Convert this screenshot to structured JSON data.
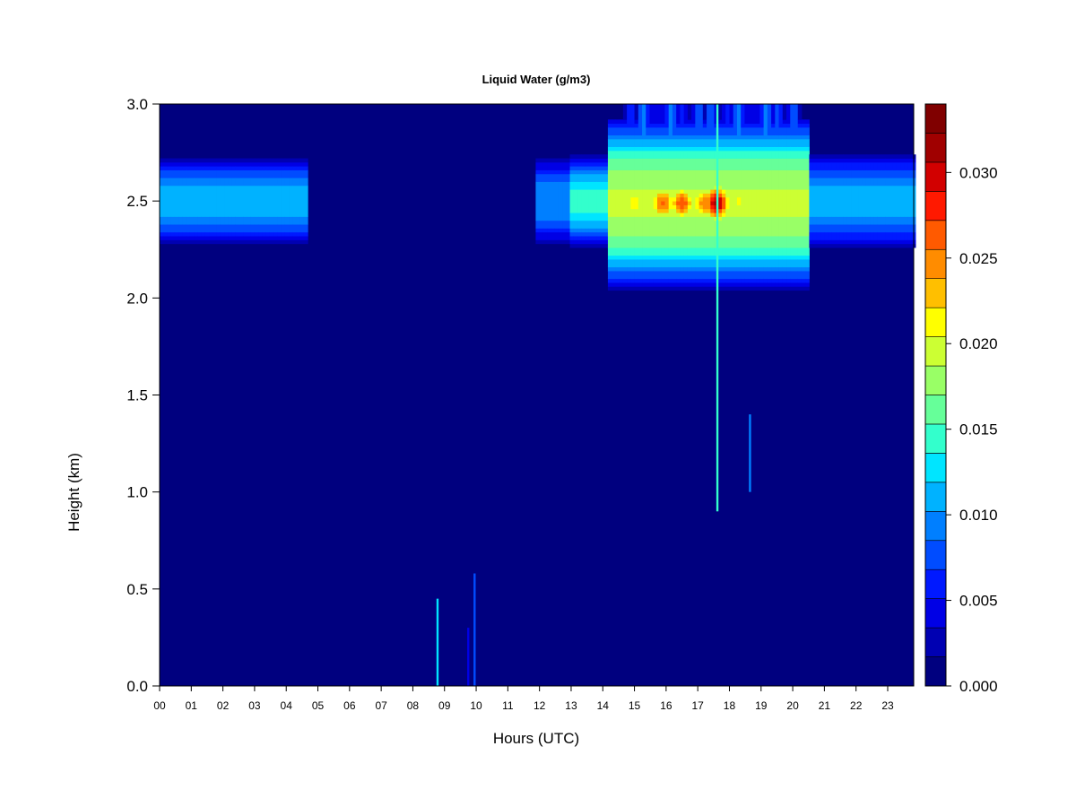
{
  "chart_data": {
    "type": "heatmap",
    "title": "Liquid Water (g/m3)",
    "xlabel": "Hours (UTC)",
    "ylabel": "Height (km)",
    "xlim": [
      0,
      23.9
    ],
    "ylim": [
      0,
      3.0
    ],
    "x_ticks": [
      "00",
      "01",
      "02",
      "03",
      "04",
      "05",
      "06",
      "07",
      "08",
      "09",
      "10",
      "11",
      "12",
      "13",
      "14",
      "15",
      "16",
      "17",
      "18",
      "19",
      "20",
      "21",
      "22",
      "23"
    ],
    "y_ticks": [
      "0.0",
      "0.5",
      "1.0",
      "1.5",
      "2.0",
      "2.5",
      "3.0"
    ],
    "colorbar": {
      "min": 0.0,
      "max": 0.034,
      "tick_values": [
        0.0,
        0.005,
        0.01,
        0.015,
        0.02,
        0.025,
        0.03
      ],
      "tick_labels": [
        "0.000",
        "0.005",
        "0.010",
        "0.015",
        "0.020",
        "0.025",
        "0.030"
      ],
      "colors": [
        "#00007f",
        "#0000b2",
        "#0000e5",
        "#0019ff",
        "#004cff",
        "#007fff",
        "#00b2ff",
        "#00e5ff",
        "#33ffcc",
        "#66ff99",
        "#99ff66",
        "#ccff33",
        "#ffff00",
        "#ffbf00",
        "#ff8c00",
        "#ff5a00",
        "#ff1900",
        "#d20000",
        "#a00000",
        "#800000"
      ]
    },
    "background_value": 0.0,
    "cloud_layers": [
      {
        "x_start": 0.0,
        "x_end": 4.7,
        "center_km": 2.5,
        "half_thickness_km": 0.23,
        "peak": 0.011
      },
      {
        "x_start": 11.9,
        "x_end": 13.0,
        "center_km": 2.5,
        "half_thickness_km": 0.22,
        "peak": 0.01
      },
      {
        "x_start": 13.0,
        "x_end": 14.2,
        "center_km": 2.5,
        "half_thickness_km": 0.24,
        "peak": 0.014
      },
      {
        "x_start": 14.2,
        "x_end": 20.5,
        "center_km": 2.49,
        "half_thickness_km": 0.44,
        "peak": 0.019
      },
      {
        "x_start": 20.5,
        "x_end": 23.9,
        "center_km": 2.5,
        "half_thickness_km": 0.24,
        "peak": 0.011
      }
    ],
    "hotspots": [
      {
        "x": 15.0,
        "y": 2.49,
        "value": 0.022
      },
      {
        "x": 15.9,
        "y": 2.49,
        "value": 0.026
      },
      {
        "x": 16.5,
        "y": 2.49,
        "value": 0.027
      },
      {
        "x": 17.2,
        "y": 2.49,
        "value": 0.025
      },
      {
        "x": 17.6,
        "y": 2.49,
        "value": 0.031
      },
      {
        "x": 18.3,
        "y": 2.5,
        "value": 0.021
      },
      {
        "x": 19.9,
        "y": 2.5,
        "value": 0.019
      }
    ],
    "upper_layer": {
      "x_start": 14.6,
      "x_end": 20.3,
      "y_start": 2.72,
      "y_end": 3.0,
      "peak": 0.012
    },
    "vertical_streaks": [
      {
        "x": 17.62,
        "y_start": 0.9,
        "y_end": 3.0,
        "value": 0.014
      },
      {
        "x": 18.65,
        "y_start": 1.0,
        "y_end": 1.4,
        "value": 0.009
      },
      {
        "x": 8.78,
        "y_start": 0.0,
        "y_end": 0.45,
        "value": 0.012
      },
      {
        "x": 9.95,
        "y_start": 0.0,
        "y_end": 0.58,
        "value": 0.007
      },
      {
        "x": 9.75,
        "y_start": 0.0,
        "y_end": 0.3,
        "value": 0.004
      }
    ]
  }
}
